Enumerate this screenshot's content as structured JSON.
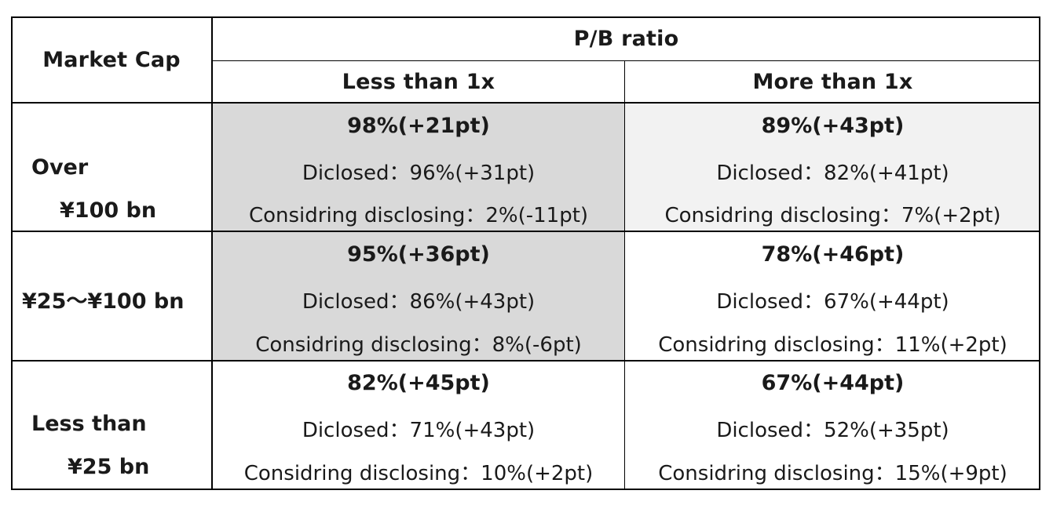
{
  "table": {
    "corner_label": "Market Cap",
    "group_header": "P/B ratio",
    "columns": [
      "Less than 1x",
      "More than 1x"
    ],
    "rows": [
      {
        "label_line1": "Over",
        "label_line2": "¥100 bn",
        "cells": [
          {
            "headline": "98%(+21pt)",
            "disclosed": "Diclosed：96%(+31pt)",
            "considering": "Considring disclosing：2%(-11pt)"
          },
          {
            "headline": "89%(+43pt)",
            "disclosed": "Diclosed：82%(+41pt)",
            "considering": "Considring disclosing：7%(+2pt)"
          }
        ]
      },
      {
        "label_line1": "¥25～¥100 bn",
        "cells": [
          {
            "headline": "95%(+36pt)",
            "disclosed": "Diclosed：86%(+43pt)",
            "considering": "Considring disclosing：8%(-6pt)"
          },
          {
            "headline": "78%(+46pt)",
            "disclosed": "Diclosed：67%(+44pt)",
            "considering": "Considring disclosing：11%(+2pt)"
          }
        ]
      },
      {
        "label_line1": "Less than",
        "label_line2": "¥25 bn",
        "cells": [
          {
            "headline": "82%(+45pt)",
            "disclosed": "Diclosed：71%(+43pt)",
            "considering": "Considring disclosing：10%(+2pt)"
          },
          {
            "headline": "67%(+44pt)",
            "disclosed": "Diclosed：52%(+35pt)",
            "considering": "Considring disclosing：15%(+9pt)"
          }
        ]
      }
    ],
    "colors": {
      "border": "#000000",
      "shade_dark": "#d9d9d9",
      "shade_light": "#f2f2f2",
      "text": "#1a1a1a"
    }
  }
}
